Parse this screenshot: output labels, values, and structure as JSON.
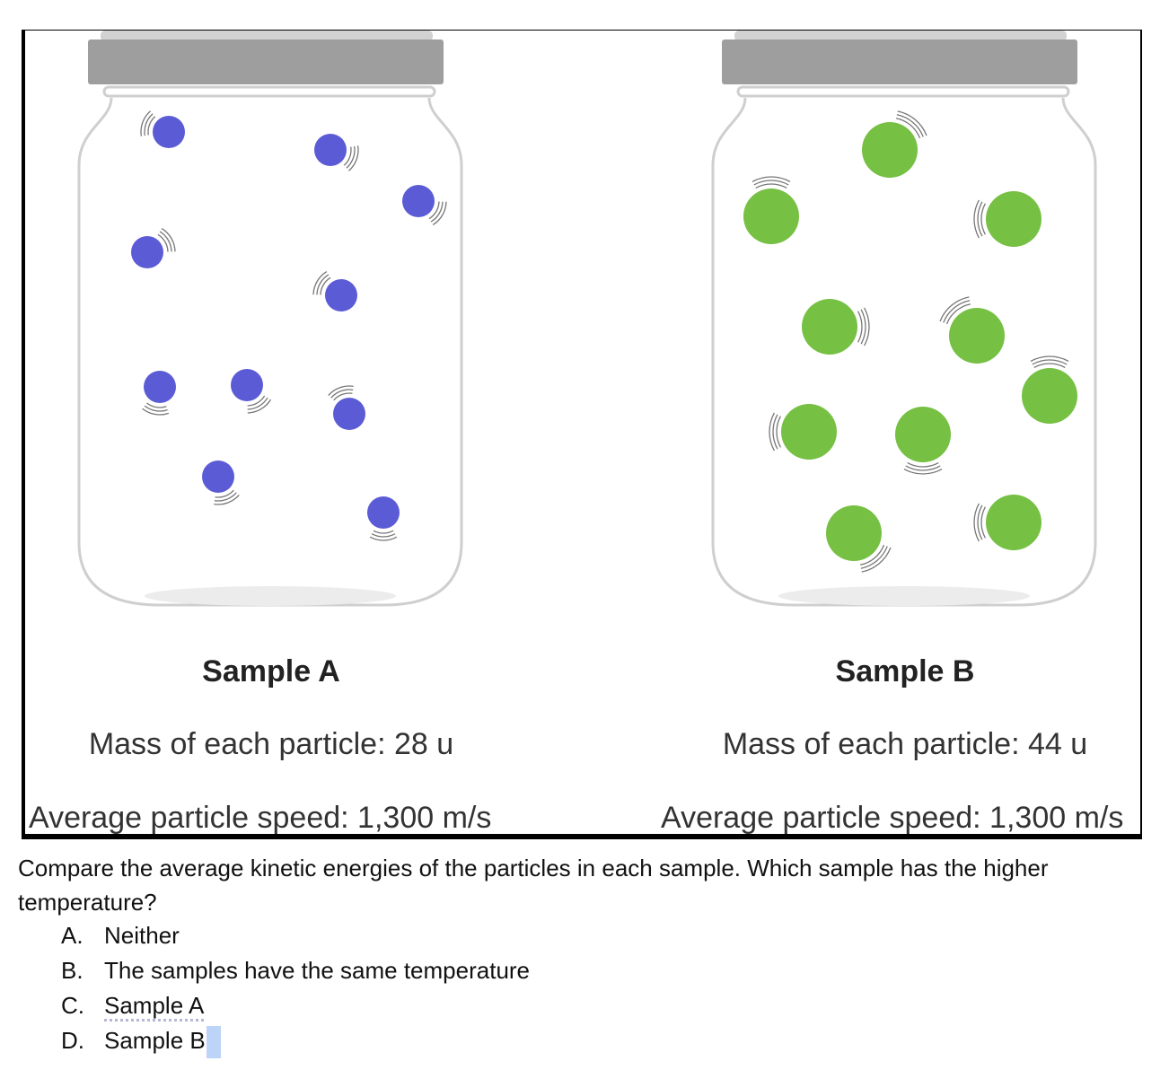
{
  "figure": {
    "sample_a": {
      "title": "Sample A",
      "mass": "Mass of each particle: 28 u",
      "speed": "Average particle speed: 1,300 m/s",
      "particle_color": "#5b5bd6",
      "particle_count": 10
    },
    "sample_b": {
      "title": "Sample B",
      "mass": "Mass of each particle: 44 u",
      "speed": "Average particle speed: 1,300 m/s",
      "particle_color": "#76c043",
      "particle_count": 10
    },
    "jar_lid_color": "#9e9e9e",
    "jar_outline_color": "#cfcfcf"
  },
  "question": {
    "text": "Compare the average kinetic energies of the particles in each sample. Which sample has the higher temperature?",
    "options": [
      {
        "letter": "A.",
        "text": "Neither"
      },
      {
        "letter": "B.",
        "text": "The samples have the same temperature"
      },
      {
        "letter": "C.",
        "text": "Sample A"
      },
      {
        "letter": "D.",
        "text": "Sample B"
      }
    ]
  }
}
